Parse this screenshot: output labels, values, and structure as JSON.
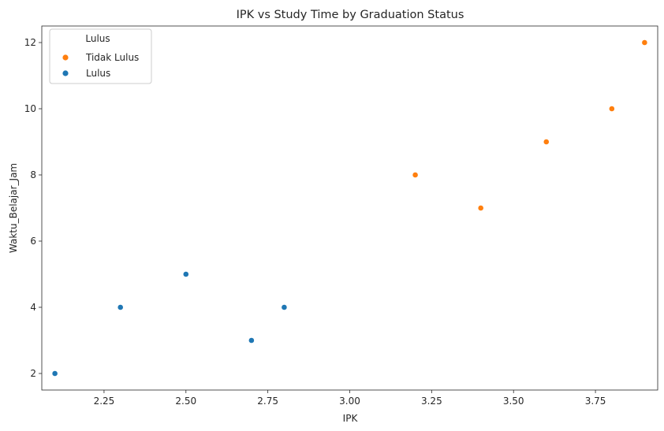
{
  "chart_data": {
    "type": "scatter",
    "title": "IPK vs Study Time by Graduation Status",
    "xlabel": "IPK",
    "ylabel": "Waktu_Belajar_Jam",
    "xlim": [
      2.06,
      3.94
    ],
    "ylim": [
      1.5,
      12.5
    ],
    "xticks": [
      2.25,
      2.5,
      2.75,
      3.0,
      3.25,
      3.5,
      3.75
    ],
    "xtick_labels": [
      "2.25",
      "2.50",
      "2.75",
      "3.00",
      "3.25",
      "3.50",
      "3.75"
    ],
    "yticks": [
      2,
      4,
      6,
      8,
      10,
      12
    ],
    "ytick_labels": [
      "2",
      "4",
      "6",
      "8",
      "10",
      "12"
    ],
    "grid": false,
    "legend": {
      "title": "Lulus",
      "placement": "top-left"
    },
    "series": [
      {
        "name": "Tidak Lulus",
        "color": "#ff7f0e",
        "points": [
          {
            "x": 3.2,
            "y": 8
          },
          {
            "x": 3.4,
            "y": 7
          },
          {
            "x": 3.6,
            "y": 9
          },
          {
            "x": 3.8,
            "y": 10
          },
          {
            "x": 3.9,
            "y": 12
          }
        ]
      },
      {
        "name": "Lulus",
        "color": "#1f77b4",
        "points": [
          {
            "x": 2.1,
            "y": 2
          },
          {
            "x": 2.3,
            "y": 4
          },
          {
            "x": 2.5,
            "y": 5
          },
          {
            "x": 2.7,
            "y": 3
          },
          {
            "x": 2.8,
            "y": 4
          }
        ]
      }
    ]
  }
}
